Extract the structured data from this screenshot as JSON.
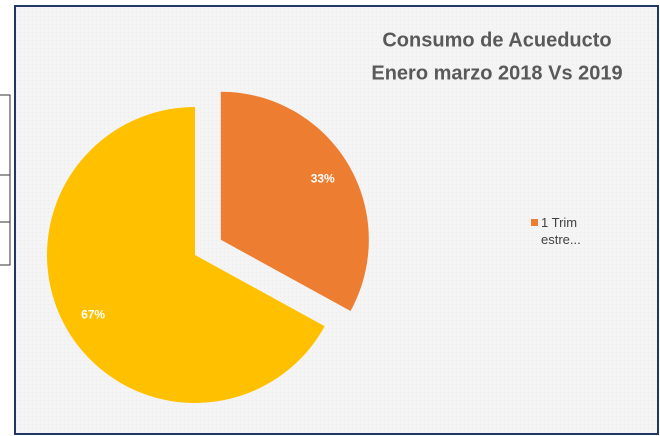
{
  "chart_data": {
    "type": "pie",
    "title": [
      "Consumo de Acueducto",
      "Enero marzo 2018 Vs 2019"
    ],
    "categories": [
      "1 Trimestre...",
      null
    ],
    "values": [
      33,
      67
    ],
    "value_labels": [
      "33%",
      "67%"
    ],
    "colors": [
      "#ed7d31",
      "#ffc000"
    ],
    "explode": [
      true,
      false
    ],
    "legend": "right"
  }
}
